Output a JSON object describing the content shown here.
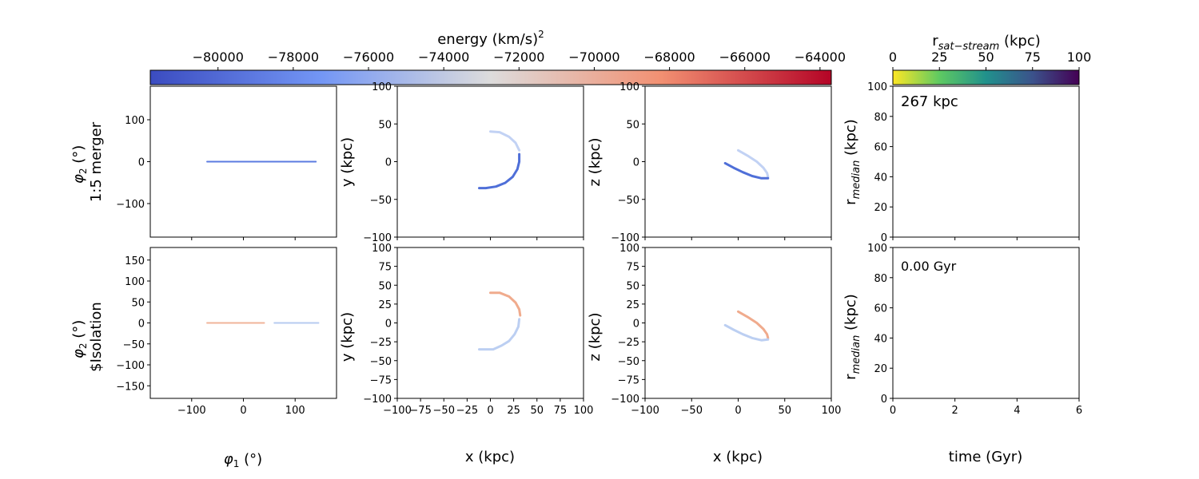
{
  "colorbars": {
    "energy": {
      "label": "energy (km/s)",
      "label_sup": "2",
      "ticks": [
        "−80000",
        "−78000",
        "−76000",
        "−74000",
        "−72000",
        "−70000",
        "−68000",
        "−66000",
        "−64000"
      ],
      "tick_values": [
        -80000,
        -78000,
        -76000,
        -74000,
        -72000,
        -70000,
        -68000,
        -66000,
        -64000
      ],
      "range": [
        -81800,
        -63700
      ],
      "colormap": "coolwarm"
    },
    "distance": {
      "label_main": "r",
      "label_sub": "sat−stream",
      "label_unit": " (kpc)",
      "ticks": [
        "0",
        "25",
        "50",
        "75",
        "100"
      ],
      "tick_values": [
        0,
        25,
        50,
        75,
        100
      ],
      "range": [
        0,
        100
      ],
      "colormap": "viridis_r"
    }
  },
  "rows": [
    {
      "ylabel_line1": "φ",
      "ylabel_sub": "2",
      "ylabel_unit": " (°)",
      "ylabel_line2": "1:5 merger"
    },
    {
      "ylabel_line1": "φ",
      "ylabel_sub": "2",
      "ylabel_unit": " (°)",
      "ylabel_line2": "$Isolation"
    }
  ],
  "axes_labels": {
    "phi1": "φ",
    "phi1_sub": "1",
    "phi1_unit": " (°)",
    "x_kpc": "x (kpc)",
    "y_kpc": "y (kpc)",
    "z_kpc": "z (kpc)",
    "time": "time (Gyr)",
    "r_median_main": "r",
    "r_median_sub": "median",
    "r_median_unit": " (kpc)"
  },
  "annotations": {
    "distance": "267 kpc",
    "time": "0.00 Gyr"
  },
  "chart_data": [
    {
      "type": "scatter",
      "panel": "phi",
      "row": 0,
      "xlim": [
        -180,
        180
      ],
      "ylim": [
        -180,
        180
      ],
      "xticks": [
        -100,
        0,
        100
      ],
      "yticks": [
        -100,
        0,
        100
      ],
      "series": [
        {
          "color": "#5b7be0",
          "points": [
            [
              -70,
              0
            ],
            [
              -40,
              0
            ],
            [
              -10,
              0
            ],
            [
              20,
              0
            ],
            [
              50,
              0
            ],
            [
              80,
              0
            ],
            [
              110,
              0
            ],
            [
              140,
              0
            ]
          ]
        }
      ]
    },
    {
      "type": "scatter",
      "panel": "xy",
      "row": 0,
      "xlim": [
        -100,
        100
      ],
      "ylim": [
        -100,
        100
      ],
      "xticks": [
        -100,
        -50,
        0,
        50,
        100
      ],
      "yticks": [
        -100,
        -50,
        0,
        50,
        100
      ],
      "series": [
        {
          "color": "#c2d2f4",
          "points": [
            [
              0,
              40
            ],
            [
              10,
              39
            ],
            [
              20,
              33
            ],
            [
              27,
              25
            ],
            [
              31,
              15
            ]
          ]
        },
        {
          "color": "#4f6fd8",
          "points": [
            [
              31,
              10
            ],
            [
              31,
              0
            ],
            [
              29,
              -10
            ],
            [
              24,
              -20
            ],
            [
              16,
              -28
            ],
            [
              6,
              -33
            ],
            [
              -5,
              -35
            ],
            [
              -12,
              -35
            ]
          ]
        }
      ]
    },
    {
      "type": "scatter",
      "panel": "xz",
      "row": 0,
      "xlim": [
        -100,
        100
      ],
      "ylim": [
        -100,
        100
      ],
      "xticks": [
        -100,
        -50,
        0,
        50,
        100
      ],
      "yticks": [
        -100,
        -50,
        0,
        50,
        100
      ],
      "series": [
        {
          "color": "#c2d2f4",
          "points": [
            [
              0,
              15
            ],
            [
              10,
              8
            ],
            [
              20,
              0
            ],
            [
              27,
              -8
            ],
            [
              31,
              -15
            ],
            [
              32,
              -20
            ]
          ]
        },
        {
          "color": "#4f6fd8",
          "points": [
            [
              -14,
              -2
            ],
            [
              -5,
              -8
            ],
            [
              5,
              -14
            ],
            [
              15,
              -19
            ],
            [
              25,
              -22
            ],
            [
              32,
              -22
            ]
          ]
        }
      ]
    },
    {
      "type": "line",
      "panel": "rmedian",
      "row": 0,
      "xlim": [
        0,
        6
      ],
      "ylim": [
        0,
        100
      ],
      "xticks": [
        0,
        2,
        4,
        6
      ],
      "yticks": [
        0,
        20,
        40,
        60,
        80,
        100
      ],
      "series": []
    },
    {
      "type": "scatter",
      "panel": "phi",
      "row": 1,
      "xlim": [
        -180,
        180
      ],
      "ylim": [
        -180,
        180
      ],
      "xticks": [
        -100,
        0,
        100
      ],
      "yticks": [
        -150,
        -100,
        -50,
        0,
        50,
        100,
        150
      ],
      "xlabel": "phi1",
      "series": [
        {
          "color": "#f0b49a",
          "points": [
            [
              -70,
              0
            ],
            [
              -40,
              0
            ],
            [
              -10,
              0
            ],
            [
              20,
              0
            ],
            [
              40,
              0
            ]
          ]
        },
        {
          "color": "#b7cbf0",
          "points": [
            [
              60,
              0
            ],
            [
              90,
              0
            ],
            [
              120,
              0
            ],
            [
              145,
              0
            ]
          ]
        }
      ]
    },
    {
      "type": "scatter",
      "panel": "xy",
      "row": 1,
      "xlim": [
        -100,
        100
      ],
      "ylim": [
        -100,
        100
      ],
      "xticks": [
        -100,
        -75,
        -50,
        -25,
        0,
        25,
        50,
        75,
        100
      ],
      "yticks": [
        -100,
        -75,
        -50,
        -25,
        0,
        25,
        50,
        75,
        100
      ],
      "xlabel": "x_kpc",
      "series": [
        {
          "color": "#f0ab8d",
          "points": [
            [
              0,
              40
            ],
            [
              10,
              40
            ],
            [
              20,
              35
            ],
            [
              27,
              27
            ],
            [
              31,
              18
            ],
            [
              32,
              10
            ]
          ]
        },
        {
          "color": "#bccff2",
          "points": [
            [
              31,
              5
            ],
            [
              30,
              -5
            ],
            [
              26,
              -15
            ],
            [
              20,
              -24
            ],
            [
              12,
              -30
            ],
            [
              3,
              -35
            ],
            [
              -5,
              -35
            ],
            [
              -12,
              -35
            ]
          ]
        }
      ]
    },
    {
      "type": "scatter",
      "panel": "xz",
      "row": 1,
      "xlim": [
        -100,
        100
      ],
      "ylim": [
        -100,
        100
      ],
      "xticks": [
        -100,
        -50,
        0,
        50,
        100
      ],
      "yticks": [
        -100,
        -75,
        -50,
        -25,
        0,
        25,
        50,
        75,
        100
      ],
      "xlabel": "x_kpc",
      "series": [
        {
          "color": "#f0ab8d",
          "points": [
            [
              0,
              15
            ],
            [
              10,
              8
            ],
            [
              20,
              0
            ],
            [
              27,
              -8
            ],
            [
              31,
              -15
            ],
            [
              32,
              -20
            ]
          ]
        },
        {
          "color": "#bccff2",
          "points": [
            [
              -14,
              -3
            ],
            [
              -5,
              -9
            ],
            [
              5,
              -15
            ],
            [
              15,
              -20
            ],
            [
              25,
              -23
            ],
            [
              32,
              -22
            ]
          ]
        }
      ]
    },
    {
      "type": "line",
      "panel": "rmedian",
      "row": 1,
      "xlim": [
        0,
        6
      ],
      "ylim": [
        0,
        100
      ],
      "xticks": [
        0,
        2,
        4,
        6
      ],
      "yticks": [
        0,
        20,
        40,
        60,
        80,
        100
      ],
      "xlabel": "time",
      "series": []
    }
  ]
}
